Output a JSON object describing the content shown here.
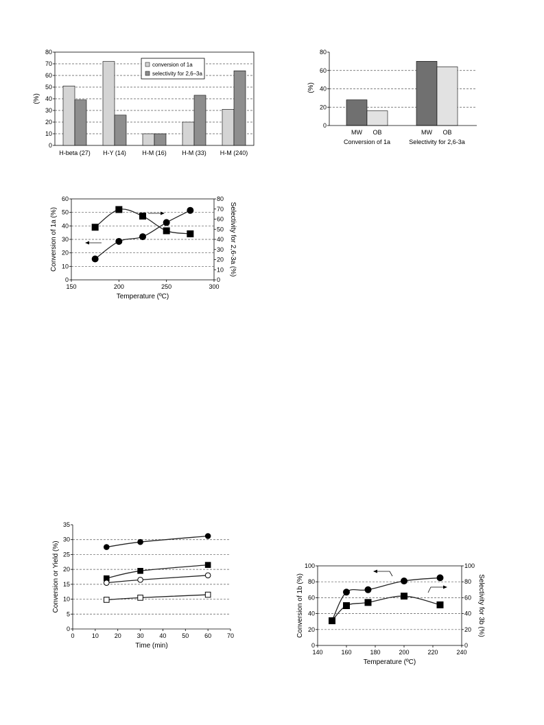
{
  "chart_data": [
    {
      "id": "c1",
      "type": "bar",
      "ylabel": "(%)",
      "ylim": [
        0,
        80
      ],
      "yticks": [
        0,
        10,
        20,
        30,
        40,
        50,
        60,
        70,
        80
      ],
      "categories": [
        "H-beta (27)",
        "H-Y (14)",
        "H-M (16)",
        "H-M (33)",
        "H-M (240)"
      ],
      "series": [
        {
          "name": "conversion of 1a",
          "values": [
            51,
            72,
            10,
            20,
            31
          ],
          "color": "#d4d4d4"
        },
        {
          "name": "selectivity for 2,6–3a",
          "values": [
            39,
            26,
            10,
            43,
            64
          ],
          "color": "#8e8e8e"
        }
      ],
      "legend": "top-center",
      "grid": true
    },
    {
      "id": "c2",
      "type": "bar",
      "ylabel": "(%)",
      "ylim": [
        0,
        80
      ],
      "yticks": [
        0,
        20,
        40,
        60,
        80
      ],
      "groups": [
        {
          "label": "Conversion of 1a",
          "bars": [
            {
              "name": "MW",
              "value": 28
            },
            {
              "name": "OB",
              "value": 16
            }
          ]
        },
        {
          "label": "Selectivity for 2,6-3a",
          "bars": [
            {
              "name": "MW",
              "value": 70
            },
            {
              "name": "OB",
              "value": 64
            }
          ]
        }
      ],
      "colors": {
        "MW": "#707070",
        "OB": "#e2e2e2"
      },
      "grid": true
    },
    {
      "id": "c3",
      "type": "line",
      "xlabel": "Temperature (ºC)",
      "ylabel": "Conversion of 1a (%)",
      "y2label": "Selectivity for 2,6-3a (%)",
      "xlim": [
        150,
        300
      ],
      "xticks": [
        150,
        200,
        250,
        300
      ],
      "ylim": [
        0,
        60
      ],
      "yticks": [
        0,
        10,
        20,
        30,
        40,
        50,
        60
      ],
      "y2lim": [
        0,
        80
      ],
      "y2ticks": [
        0,
        10,
        20,
        30,
        40,
        50,
        60,
        70,
        80
      ],
      "series": [
        {
          "name": "",
          "axis": "left",
          "marker": "circle-filled",
          "x": [
            175,
            200,
            225,
            250,
            275
          ],
          "y": [
            15.5,
            28.5,
            32,
            42.5,
            51.5
          ]
        },
        {
          "name": "",
          "axis": "right",
          "marker": "square-filled",
          "x": [
            175,
            200,
            225,
            250,
            275
          ],
          "y": [
            52,
            69.5,
            63,
            48.5,
            45.5
          ]
        }
      ],
      "grid": true
    },
    {
      "id": "c4",
      "type": "line",
      "xlabel": "Time (min)",
      "ylabel": "Conversion or Yield (%)",
      "xlim": [
        0,
        70
      ],
      "xticks": [
        0,
        10,
        20,
        30,
        40,
        50,
        60,
        70
      ],
      "ylim": [
        0,
        35
      ],
      "yticks": [
        0,
        5,
        10,
        15,
        20,
        25,
        30,
        35
      ],
      "series": [
        {
          "name": "",
          "marker": "circle-filled",
          "x": [
            15,
            30,
            60
          ],
          "y": [
            27.5,
            29.2,
            31.2
          ]
        },
        {
          "name": "",
          "marker": "square-filled",
          "x": [
            15,
            30,
            60
          ],
          "y": [
            17,
            19.5,
            21.5
          ]
        },
        {
          "name": "",
          "marker": "circle-open",
          "x": [
            15,
            30,
            60
          ],
          "y": [
            15.5,
            16.5,
            18
          ]
        },
        {
          "name": "",
          "marker": "square-open",
          "x": [
            15,
            30,
            60
          ],
          "y": [
            9.8,
            10.5,
            11.5
          ]
        }
      ],
      "grid": true
    },
    {
      "id": "c5",
      "type": "line",
      "xlabel": "Temperature (ºC)",
      "ylabel": "Conversion of 1b (%)",
      "y2label": "Selectivity for 3b (%)",
      "xlim": [
        140,
        240
      ],
      "xticks": [
        140,
        160,
        180,
        200,
        220,
        240
      ],
      "ylim": [
        0,
        100
      ],
      "yticks": [
        0,
        20,
        40,
        60,
        80,
        100
      ],
      "y2lim": [
        0,
        100
      ],
      "y2ticks": [
        0,
        20,
        40,
        60,
        80,
        100
      ],
      "series": [
        {
          "name": "",
          "axis": "left",
          "marker": "circle-filled",
          "x": [
            150,
            160,
            175,
            200,
            225
          ],
          "y": [
            31,
            67,
            70,
            81,
            85
          ]
        },
        {
          "name": "",
          "axis": "right",
          "marker": "square-filled",
          "x": [
            150,
            160,
            175,
            200,
            225
          ],
          "y": [
            31,
            50,
            54,
            62,
            51
          ]
        }
      ],
      "grid": true
    }
  ]
}
